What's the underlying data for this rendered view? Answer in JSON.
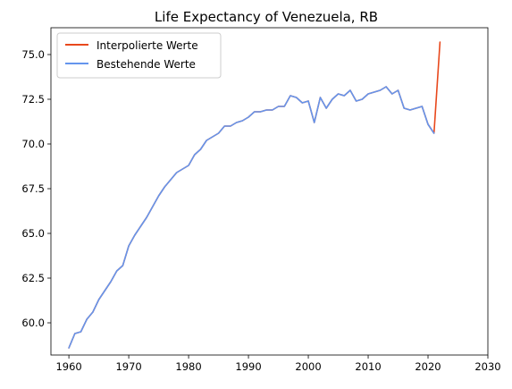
{
  "chart_data": {
    "type": "line",
    "title": "Life Expectancy of Venezuela, RB",
    "xlabel": "",
    "ylabel": "",
    "xlim": [
      1957,
      2030
    ],
    "ylim": [
      58.2,
      76.5
    ],
    "xticks": [
      1960,
      1970,
      1980,
      1990,
      2000,
      2010,
      2020,
      2030
    ],
    "xtick_labels": [
      "1960",
      "1970",
      "1980",
      "1990",
      "2000",
      "2010",
      "2020",
      "2030"
    ],
    "yticks": [
      60.0,
      62.5,
      65.0,
      67.5,
      70.0,
      72.5,
      75.0
    ],
    "ytick_labels": [
      "60.0",
      "62.5",
      "65.0",
      "67.5",
      "70.0",
      "72.5",
      "75.0"
    ],
    "grid": false,
    "legend_position": "top-left",
    "series": [
      {
        "name": "Interpolierte Werte",
        "color": "#e8481c",
        "x": [
          1960,
          1961,
          1962,
          1963,
          1964,
          1965,
          1966,
          1967,
          1968,
          1969,
          1970,
          1971,
          1972,
          1973,
          1974,
          1975,
          1976,
          1977,
          1978,
          1979,
          1980,
          1981,
          1982,
          1983,
          1984,
          1985,
          1986,
          1987,
          1988,
          1989,
          1990,
          1991,
          1992,
          1993,
          1994,
          1995,
          1996,
          1997,
          1998,
          1999,
          2000,
          2001,
          2002,
          2003,
          2004,
          2005,
          2006,
          2007,
          2008,
          2009,
          2010,
          2011,
          2012,
          2013,
          2014,
          2015,
          2016,
          2017,
          2018,
          2019,
          2020,
          2021,
          2022
        ],
        "y": [
          58.6,
          59.4,
          59.5,
          60.2,
          60.6,
          61.3,
          61.8,
          62.3,
          62.9,
          63.2,
          64.3,
          64.9,
          65.4,
          65.9,
          66.5,
          67.1,
          67.6,
          68.0,
          68.4,
          68.6,
          68.8,
          69.4,
          69.7,
          70.2,
          70.4,
          70.6,
          71.0,
          71.0,
          71.2,
          71.3,
          71.5,
          71.8,
          71.8,
          71.9,
          71.9,
          72.1,
          72.1,
          72.7,
          72.6,
          72.3,
          72.4,
          71.2,
          72.6,
          72.0,
          72.5,
          72.8,
          72.7,
          73.0,
          72.4,
          72.5,
          72.8,
          72.9,
          73.0,
          73.2,
          72.8,
          73.0,
          72.0,
          71.9,
          72.0,
          72.1,
          71.1,
          70.6,
          75.7
        ]
      },
      {
        "name": "Bestehende Werte",
        "color": "#6495ed",
        "x": [
          1960,
          1961,
          1962,
          1963,
          1964,
          1965,
          1966,
          1967,
          1968,
          1969,
          1970,
          1971,
          1972,
          1973,
          1974,
          1975,
          1976,
          1977,
          1978,
          1979,
          1980,
          1981,
          1982,
          1983,
          1984,
          1985,
          1986,
          1987,
          1988,
          1989,
          1990,
          1991,
          1992,
          1993,
          1994,
          1995,
          1996,
          1997,
          1998,
          1999,
          2000,
          2001,
          2002,
          2003,
          2004,
          2005,
          2006,
          2007,
          2008,
          2009,
          2010,
          2011,
          2012,
          2013,
          2014,
          2015,
          2016,
          2017,
          2018,
          2019,
          2020,
          2021
        ],
        "y": [
          58.6,
          59.4,
          59.5,
          60.2,
          60.6,
          61.3,
          61.8,
          62.3,
          62.9,
          63.2,
          64.3,
          64.9,
          65.4,
          65.9,
          66.5,
          67.1,
          67.6,
          68.0,
          68.4,
          68.6,
          68.8,
          69.4,
          69.7,
          70.2,
          70.4,
          70.6,
          71.0,
          71.0,
          71.2,
          71.3,
          71.5,
          71.8,
          71.8,
          71.9,
          71.9,
          72.1,
          72.1,
          72.7,
          72.6,
          72.3,
          72.4,
          71.2,
          72.6,
          72.0,
          72.5,
          72.8,
          72.7,
          73.0,
          72.4,
          72.5,
          72.8,
          72.9,
          73.0,
          73.2,
          72.8,
          73.0,
          72.0,
          71.9,
          72.0,
          72.1,
          71.1,
          70.6
        ]
      }
    ]
  }
}
